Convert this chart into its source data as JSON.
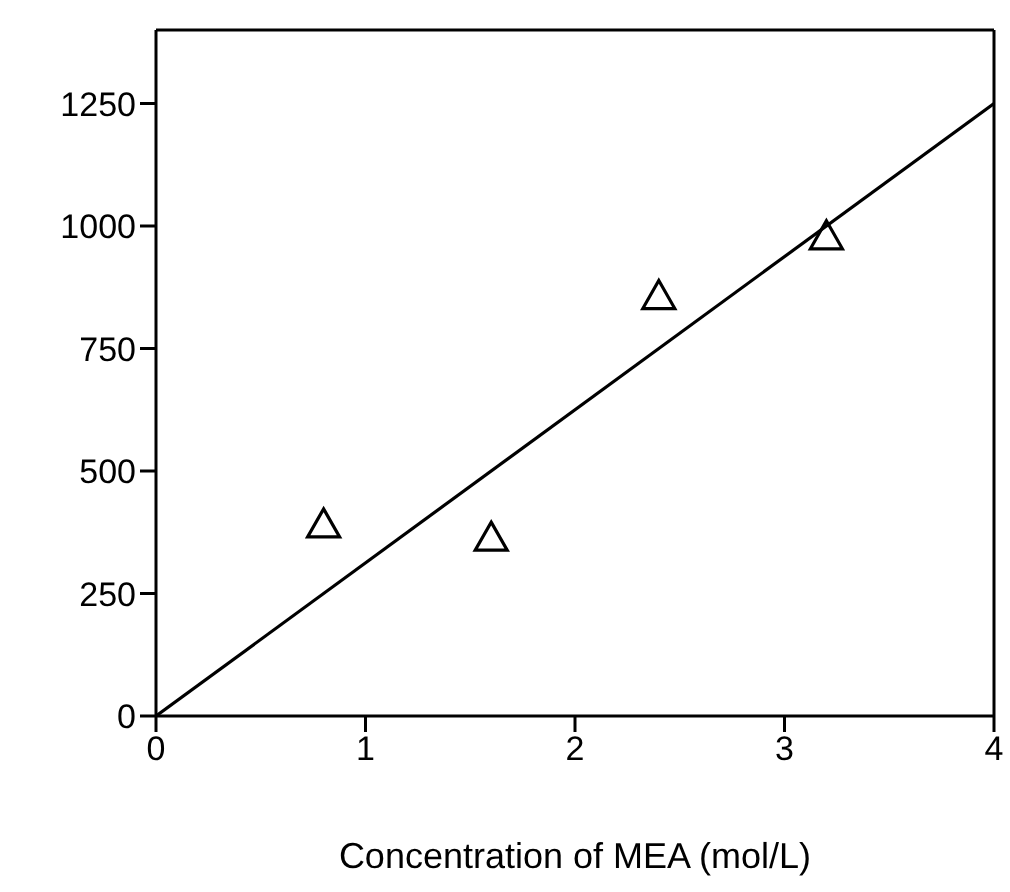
{
  "chart_data": {
    "type": "scatter",
    "xlabel": "Concentration of MEA (mol/L)",
    "xlim": [
      0,
      4
    ],
    "xticks": [
      0,
      1,
      2,
      3,
      4
    ],
    "ylim": [
      0,
      1400
    ],
    "yticks": [
      0,
      250,
      500,
      750,
      1000,
      1250
    ],
    "series": [
      {
        "type": "scatter",
        "marker": "triangle",
        "color": "#000000",
        "x": [
          0.8,
          1.6,
          2.4,
          3.2
        ],
        "values": [
          390,
          363,
          856,
          978
        ]
      },
      {
        "type": "line",
        "color": "#000000",
        "x": [
          0,
          4
        ],
        "values": [
          0,
          1250
        ]
      }
    ]
  }
}
